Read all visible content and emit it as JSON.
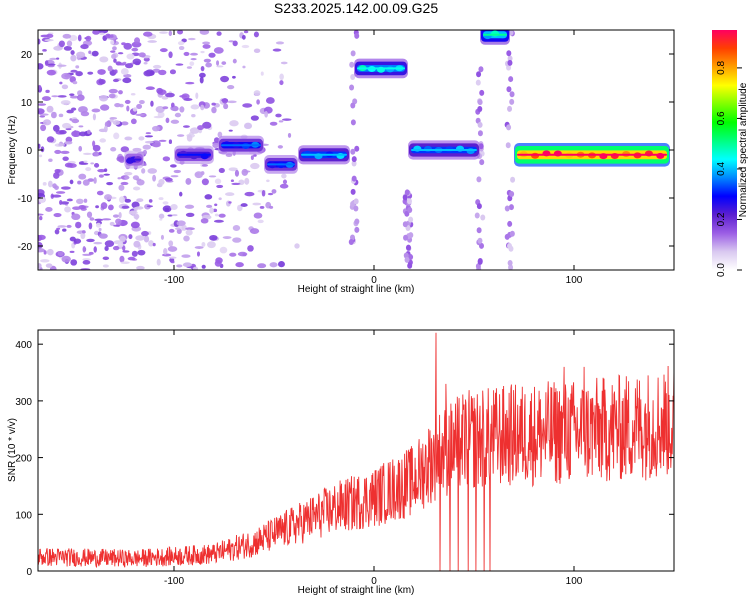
{
  "title": "S233.2025.142.00.09.G25",
  "chart_data": [
    {
      "type": "heatmap",
      "xlabel": "Height of straight line (km)",
      "ylabel": "Frequency (Hz)",
      "xlim": [
        -168,
        150
      ],
      "ylim": [
        -25,
        25
      ],
      "xticks": [
        -100,
        0,
        100
      ],
      "yticks": [
        -20,
        -10,
        0,
        10,
        20
      ],
      "colorbar": {
        "label": "Normalized spectral amplitude",
        "range": [
          0,
          0.95
        ],
        "ticks": [
          0.0,
          0.2,
          0.4,
          0.6,
          0.8
        ],
        "tick_labels": [
          "0.0",
          "0.2",
          "0.4",
          "0.6",
          "0.8"
        ],
        "colors": [
          "#ffffff",
          "#d9c8f0",
          "#9b5de5",
          "#5b1fd0",
          "#0000ff",
          "#0088ff",
          "#00ffff",
          "#00ff80",
          "#00ff00",
          "#80ff00",
          "#ffff00",
          "#ffa000",
          "#ff4000",
          "#ff0060"
        ]
      },
      "segments": [
        {
          "x_start": -168,
          "x_end": -58,
          "freq": 0,
          "level": 0.1,
          "note_scatter": true
        },
        {
          "x_start": -125,
          "x_end": -115,
          "freq": -2,
          "level": 0.25
        },
        {
          "x_start": -100,
          "x_end": -80,
          "freq": -1,
          "level": 0.3
        },
        {
          "x_start": -78,
          "x_end": -55,
          "freq": 1,
          "level": 0.35
        },
        {
          "x_start": -55,
          "x_end": -38,
          "freq": -3,
          "level": 0.35
        },
        {
          "x_start": -38,
          "x_end": -12,
          "freq": -1,
          "level": 0.4
        },
        {
          "x_start": -10,
          "x_end": 17,
          "freq": 17,
          "level": 0.45
        },
        {
          "x_start": 17,
          "x_end": 53,
          "freq": 0,
          "level": 0.4
        },
        {
          "x_start": 53,
          "x_end": 68,
          "freq": 24,
          "level": 0.5
        },
        {
          "x_start": 70,
          "x_end": 148,
          "freq": -1,
          "level": 0.95
        }
      ]
    },
    {
      "type": "line",
      "xlabel": "Height of straight line (km)",
      "ylabel": "SNR (10 * v/v)",
      "xlim": [
        -168,
        150
      ],
      "ylim": [
        0,
        425
      ],
      "xticks": [
        -100,
        0,
        100
      ],
      "yticks": [
        0,
        100,
        200,
        300,
        400
      ],
      "color": "#ee3030",
      "trend": {
        "x": [
          -168,
          -120,
          -80,
          -60,
          -40,
          -20,
          0,
          20,
          30,
          45,
          70,
          100,
          120,
          150
        ],
        "y": [
          25,
          22,
          30,
          50,
          80,
          110,
          130,
          160,
          200,
          230,
          240,
          245,
          250,
          265
        ]
      },
      "peaks": [
        {
          "x": 31,
          "y": 420
        },
        {
          "x": 33,
          "y": 390
        },
        {
          "x": 36,
          "y": 330
        },
        {
          "x": 95,
          "y": 360
        },
        {
          "x": 105,
          "y": 360
        }
      ],
      "dropouts": [
        {
          "x": 33,
          "y": 0
        },
        {
          "x": 38,
          "y": 0
        },
        {
          "x": 42,
          "y": 0
        },
        {
          "x": 47,
          "y": 0
        },
        {
          "x": 51,
          "y": 0
        },
        {
          "x": 55,
          "y": 0
        },
        {
          "x": 58,
          "y": 0
        }
      ]
    }
  ]
}
